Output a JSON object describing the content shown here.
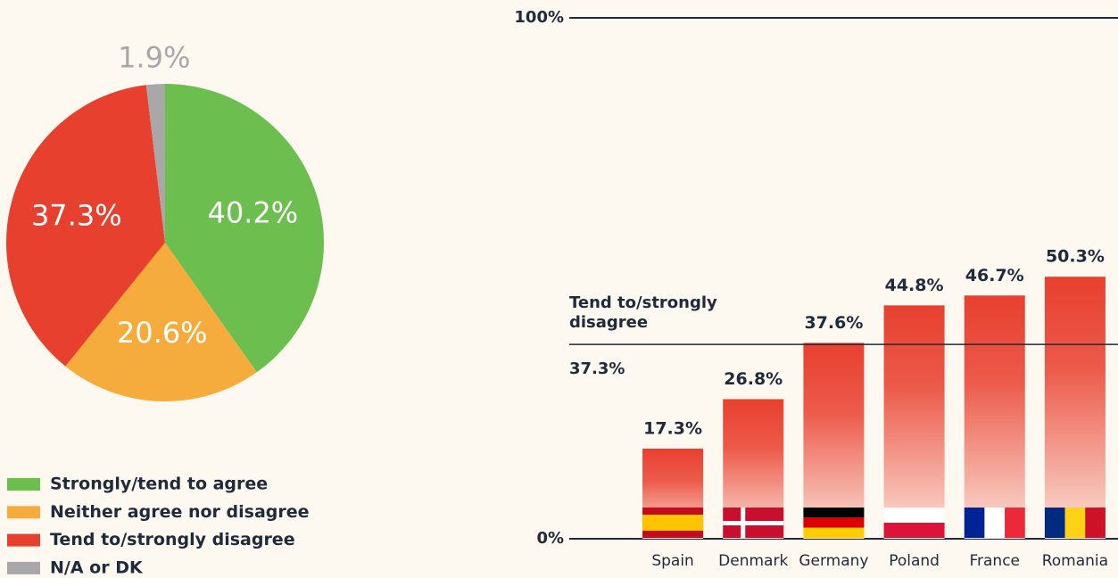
{
  "chart_data": [
    {
      "type": "pie",
      "categories": [
        "Strongly/tend to agree",
        "Neither agree nor disagree",
        "Tend to/strongly disagree",
        "N/A or DK"
      ],
      "values": [
        40.2,
        20.6,
        37.3,
        1.9
      ],
      "value_labels": [
        "40.2%",
        "20.6%",
        "37.3%",
        "1.9%"
      ],
      "colors": [
        "#6cbf4f",
        "#f5ac3c",
        "#e8402f",
        "#a8a8a8"
      ]
    },
    {
      "type": "bar",
      "categories": [
        "Spain",
        "Denmark",
        "Germany",
        "Poland",
        "France",
        "Romania"
      ],
      "values": [
        17.3,
        26.8,
        37.6,
        44.8,
        46.7,
        50.3
      ],
      "value_labels": [
        "17.3%",
        "26.8%",
        "37.6%",
        "44.8%",
        "46.7%",
        "50.3%"
      ],
      "color": "#e8402f",
      "ylim": [
        0,
        100
      ],
      "yticks": [
        {
          "value": 0,
          "label": "0%"
        },
        {
          "value": 100,
          "label": "100%"
        }
      ],
      "reference": {
        "label": [
          "Tend to/strongly",
          "disagree"
        ],
        "value": 37.3,
        "value_label": "37.3%"
      }
    }
  ]
}
